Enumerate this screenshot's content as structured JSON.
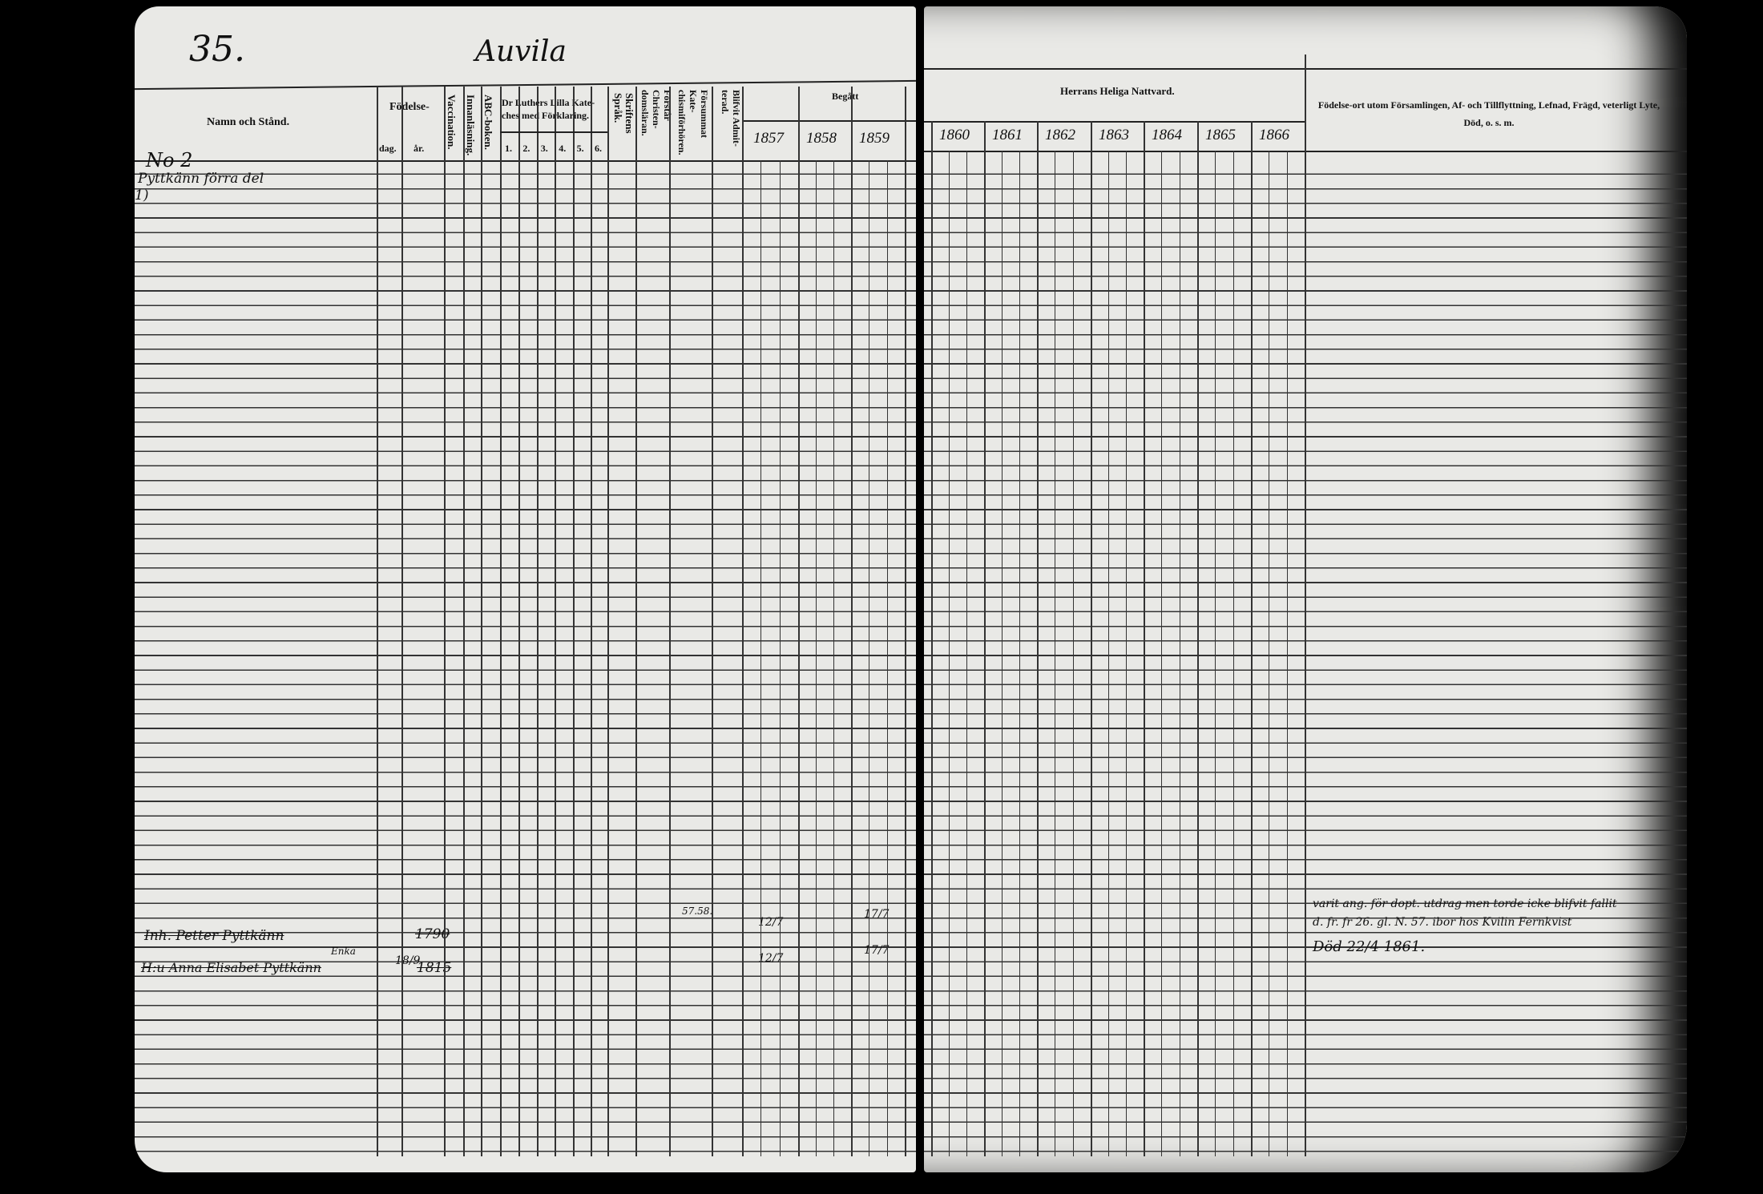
{
  "left_page": {
    "page_number": "35.",
    "village": "Auvila",
    "headers": {
      "name": "Namn och Stånd.",
      "birth": "Födelse-",
      "birth_day": "dag.",
      "birth_year": "år.",
      "vaccination": "Vaccination.",
      "reading": "Innanläsning.",
      "abc": "ABC-boken.",
      "catechism": "Dr Luthers Lilla Kate-ches med Förklaring.",
      "catechism_parts": [
        "1.",
        "2.",
        "3.",
        "4.",
        "5.",
        "6."
      ],
      "scripture": "Skriftens Språk.",
      "christianity": "Förstår Christen-domsläran.",
      "missed": "Försummat Kate-chismiförhören.",
      "admitted": "Blifvit Admit-terad.",
      "communion_label": "Begått",
      "years": [
        "1857",
        "1858",
        "1859"
      ]
    },
    "entries": {
      "household": "No 2",
      "farm": "Pyttkänn förra del",
      "row_mark": "1)",
      "person1_name": "Inh. Petter Pyttkänn",
      "person1_year": "1790",
      "person1_missed": "57.58.",
      "person1_1857": "12/7",
      "person1_1859": "17/7",
      "person2_name": "H:u Anna Elisabet Pyttkänn",
      "person2_note": "Enka",
      "person2_day": "18/9",
      "person2_year": "1815",
      "person2_1857": "12/7",
      "person2_1859": "17/7"
    }
  },
  "right_page": {
    "headers": {
      "communion": "Herrans Heliga Nattvard.",
      "years": [
        "1860",
        "1861",
        "1862",
        "1863",
        "1864",
        "1865",
        "1866"
      ],
      "remarks": "Födelse-ort utom Församlingen, Af- och Tillflyttning, Lefnad, Frägd, veterligt Lyte, Död, o. s. m."
    },
    "remarks": [
      "varit ang. för dopt. utdrag men torde icke blifvit fallit",
      "d. fr. fr 26. gl. N. 57. ibor hos Kvilin Fernkvist",
      "Död 22/4 1861."
    ]
  }
}
